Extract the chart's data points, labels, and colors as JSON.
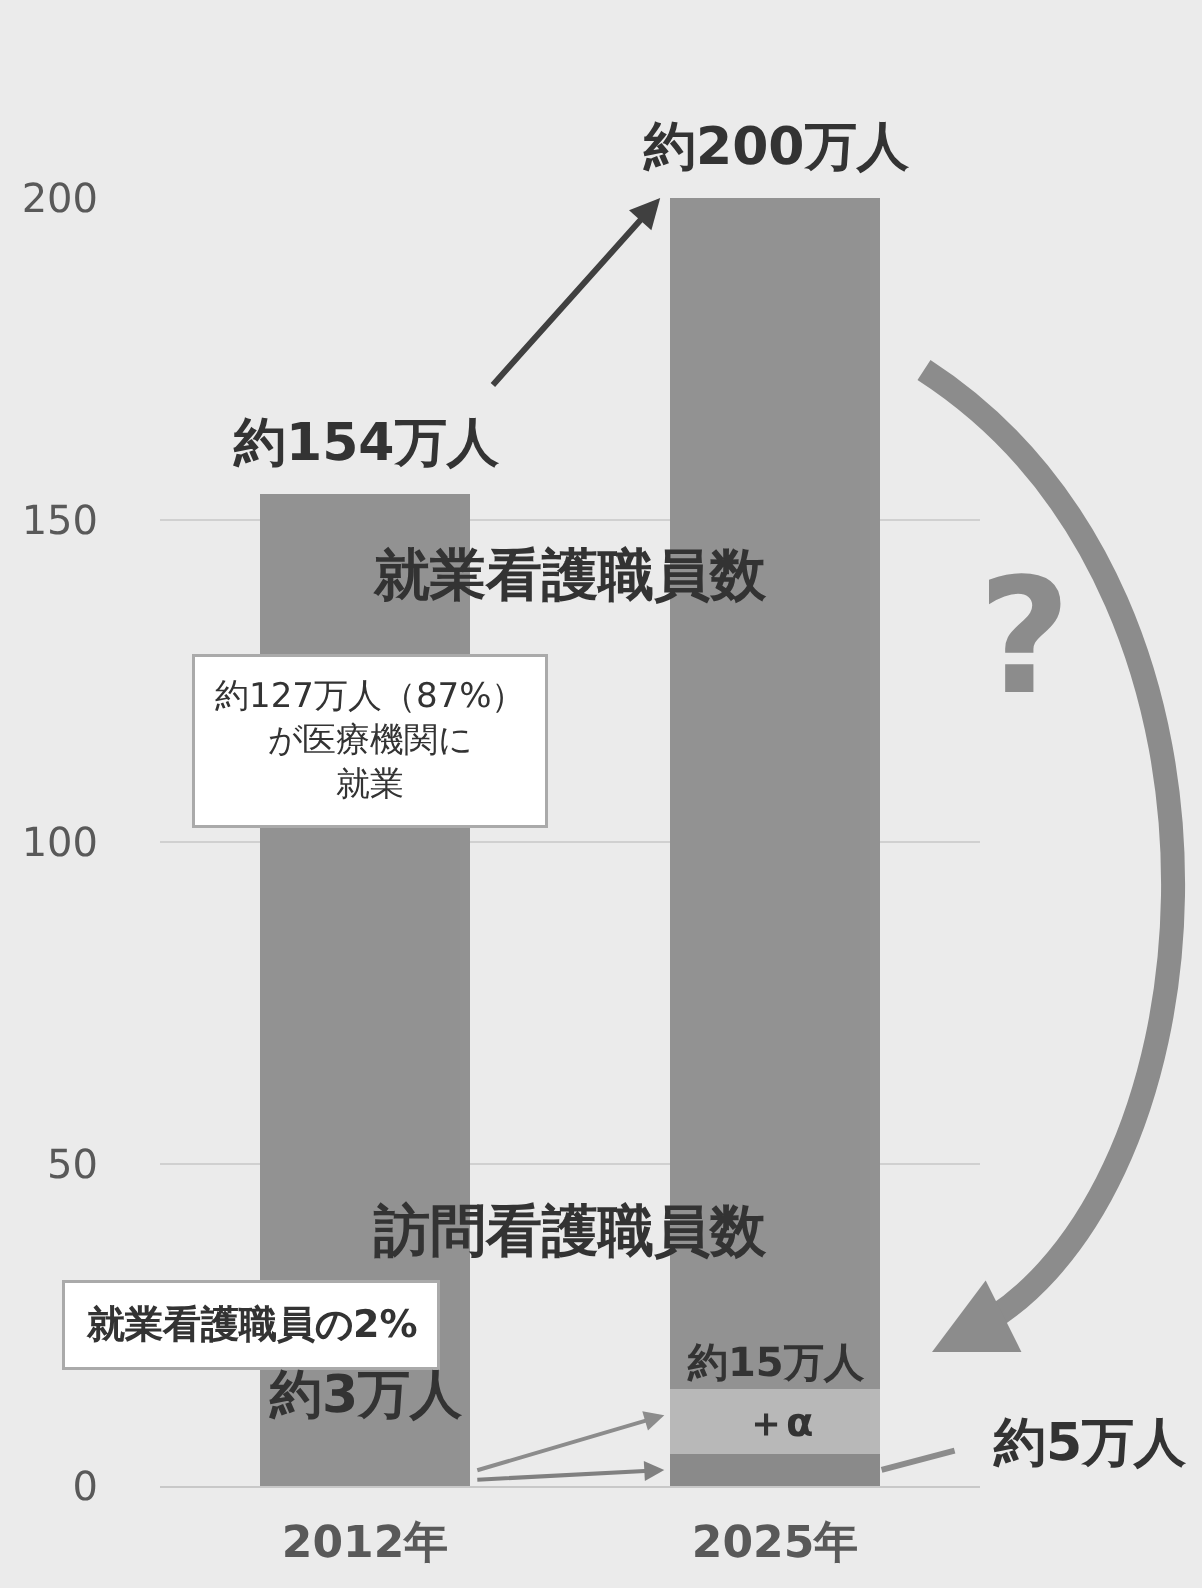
{
  "chart_data": {
    "type": "bar",
    "stacked": true,
    "categories": [
      "2012年",
      "2025年"
    ],
    "series": [
      {
        "colors": [
          "#929292",
          "#8a8a8a"
        ],
        "values": [
          3,
          5
        ]
      },
      {
        "colors": [
          "#b8b8b8",
          "#b8b8b8"
        ],
        "values": [
          null,
          10
        ]
      },
      {
        "colors": [
          "#929292",
          "#929292"
        ],
        "values": [
          151,
          185
        ]
      }
    ],
    "ylim": [
      0,
      200
    ],
    "yticks": [
      0,
      50,
      100,
      150,
      200
    ],
    "grid": "y",
    "annotations": [
      {
        "text": "約154万人",
        "x": "2012年",
        "y": 154
      },
      {
        "text": "約200万人",
        "x": "2025年",
        "y": 200
      },
      "就業看護職員数",
      "約127万人（87%）が医療機関に就業",
      "?",
      "訪問看護職員数",
      "就業看護職員の2%",
      {
        "text": "約3万人",
        "x": "2012年",
        "y": 3
      },
      {
        "text": "約15万人",
        "x": "2025年",
        "y": 15
      },
      "＋α",
      "約5万人"
    ]
  }
}
